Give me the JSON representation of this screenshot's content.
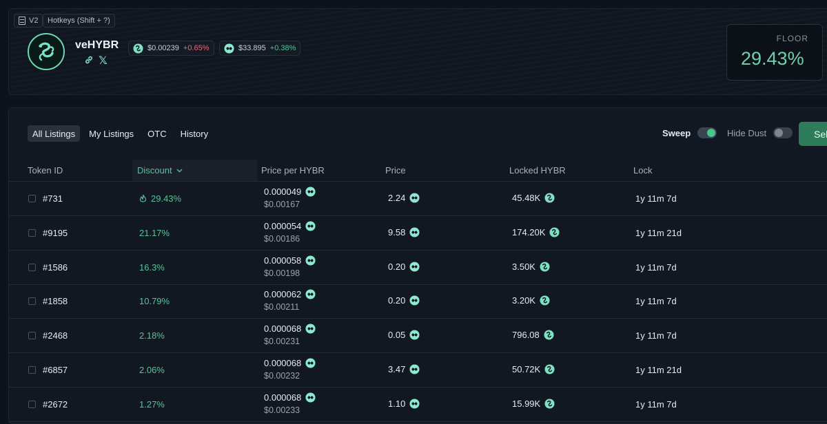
{
  "header": {
    "version_label": "V2",
    "hotkeys_label": "Hotkeys (Shift + ?)",
    "token_name": "veHYBR",
    "prices": [
      {
        "price": "$0.00239",
        "change": "+0.65%",
        "change_color": "#e06b7b",
        "icon": "hybr-coin-icon"
      },
      {
        "price": "$33.895",
        "change": "+0.38%",
        "change_color": "#59c39a",
        "icon": "hyper-coin-icon"
      }
    ],
    "floor": {
      "label": "FLOOR",
      "value": "29.43%"
    }
  },
  "tabs": [
    {
      "label": "All Listings",
      "active": true
    },
    {
      "label": "My Listings",
      "active": false
    },
    {
      "label": "OTC",
      "active": false
    },
    {
      "label": "History",
      "active": false
    }
  ],
  "toggles": {
    "sweep": {
      "label": "Sweep",
      "on": true
    },
    "hide_dust": {
      "label": "Hide Dust",
      "on": false
    }
  },
  "sell_button_label": "Sel",
  "table": {
    "columns": [
      "Token ID",
      "Discount",
      "Price per HYBR",
      "Price",
      "Locked HYBR",
      "Lock"
    ],
    "rows": [
      {
        "id": "#731",
        "discount": "29.43%",
        "hot": true,
        "pph": "0.000049",
        "pph_usd": "$0.00167",
        "price": "2.24",
        "locked": "45.48K",
        "lock": "1y 11m 7d"
      },
      {
        "id": "#9195",
        "discount": "21.17%",
        "hot": false,
        "pph": "0.000054",
        "pph_usd": "$0.00186",
        "price": "9.58",
        "locked": "174.20K",
        "lock": "1y 11m 21d"
      },
      {
        "id": "#1586",
        "discount": "16.3%",
        "hot": false,
        "pph": "0.000058",
        "pph_usd": "$0.00198",
        "price": "0.20",
        "locked": "3.50K",
        "lock": "1y 11m 7d"
      },
      {
        "id": "#1858",
        "discount": "10.79%",
        "hot": false,
        "pph": "0.000062",
        "pph_usd": "$0.00211",
        "price": "0.20",
        "locked": "3.20K",
        "lock": "1y 11m 7d"
      },
      {
        "id": "#2468",
        "discount": "2.18%",
        "hot": false,
        "pph": "0.000068",
        "pph_usd": "$0.00231",
        "price": "0.05",
        "locked": "796.08",
        "lock": "1y 11m 7d"
      },
      {
        "id": "#6857",
        "discount": "2.06%",
        "hot": false,
        "pph": "0.000068",
        "pph_usd": "$0.00232",
        "price": "3.47",
        "locked": "50.72K",
        "lock": "1y 11m 21d"
      },
      {
        "id": "#2672",
        "discount": "1.27%",
        "hot": false,
        "pph": "0.000068",
        "pph_usd": "$0.00233",
        "price": "1.10",
        "locked": "15.99K",
        "lock": "1y 11m 7d"
      }
    ]
  }
}
